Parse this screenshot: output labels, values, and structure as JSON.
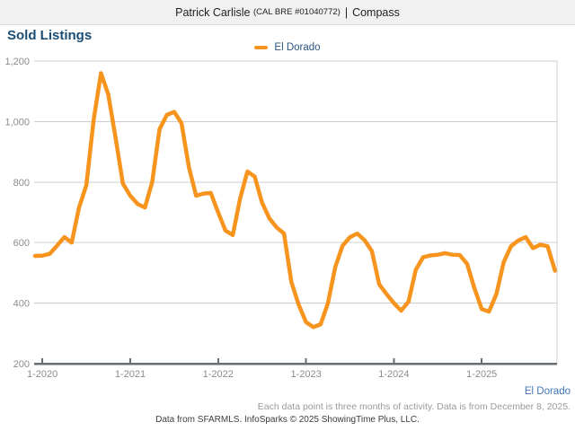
{
  "header": {
    "name": "Patrick Carlisle",
    "license": "(CAL BRE #01040772)",
    "divider": "|",
    "brand": "Compass"
  },
  "title": "Sold Listings",
  "legend": {
    "label": "El Dorado",
    "swatch_color": "#f7941e"
  },
  "chart_data": {
    "type": "line",
    "title": "Sold Listings",
    "grid": "horizontal",
    "legend_position": "top-center",
    "ylim": [
      200,
      1200
    ],
    "y_ticks": [
      {
        "label": "1,200",
        "value": 1200
      },
      {
        "label": "1,000",
        "value": 1000
      },
      {
        "label": "800",
        "value": 800
      },
      {
        "label": "600",
        "value": 600
      },
      {
        "label": "400",
        "value": 400
      },
      {
        "label": "200",
        "value": 200
      }
    ],
    "x_ticks": [
      {
        "label": "1-2020",
        "index": 1
      },
      {
        "label": "1-2021",
        "index": 13
      },
      {
        "label": "1-2022",
        "index": 25
      },
      {
        "label": "1-2023",
        "index": 37
      },
      {
        "label": "1-2024",
        "index": 49
      },
      {
        "label": "1-2025",
        "index": 61
      }
    ],
    "points_per_year": 12,
    "series": [
      {
        "name": "El Dorado",
        "color": "#f7941e",
        "values": [
          556,
          557,
          563,
          590,
          618,
          600,
          715,
          790,
          1005,
          1160,
          1090,
          945,
          795,
          755,
          728,
          716,
          800,
          975,
          1022,
          1032,
          995,
          850,
          755,
          762,
          764,
          700,
          640,
          625,
          745,
          835,
          818,
          732,
          680,
          650,
          630,
          470,
          395,
          337,
          321,
          330,
          400,
          520,
          590,
          618,
          630,
          608,
          572,
          462,
          430,
          400,
          375,
          405,
          510,
          552,
          558,
          560,
          565,
          560,
          559,
          530,
          450,
          380,
          372,
          430,
          535,
          588,
          607,
          618,
          582,
          593,
          588,
          507
        ]
      }
    ]
  },
  "footer": {
    "series_label": "El Dorado",
    "note": "Each data point is three months of activity. Data is from December 8, 2025.",
    "credit": "Data from SFARMLS. InfoSparks © 2025 ShowingTime Plus, LLC."
  }
}
